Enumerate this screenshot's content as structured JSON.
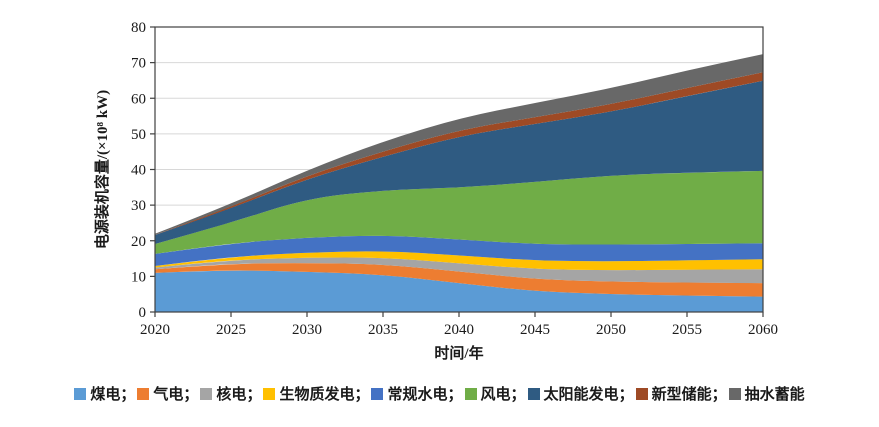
{
  "chart_data": {
    "type": "area",
    "stacked": true,
    "title": "",
    "xlabel": "时间/年",
    "ylabel": "电源装机容量/(×10⁸ kW)",
    "x": [
      2020,
      2025,
      2030,
      2035,
      2040,
      2045,
      2050,
      2055,
      2060
    ],
    "x_tick_labels": [
      "2020",
      "2025",
      "2030",
      "2035",
      "2040",
      "2045",
      "2050",
      "2055",
      "2060"
    ],
    "y_tick_labels": [
      "0",
      "10",
      "20",
      "30",
      "40",
      "50",
      "60",
      "70",
      "80"
    ],
    "xlim": [
      2020,
      2060
    ],
    "ylim": [
      0,
      80
    ],
    "ytick_step": 10,
    "grid": "horizontal",
    "gridline_color": "#d8d8d8",
    "axis_color": "#404040",
    "legend_position": "bottom",
    "legend_separator": "；",
    "series": [
      {
        "name": "煤电",
        "color": "#5B9BD5",
        "values": [
          11.0,
          11.8,
          11.3,
          10.5,
          8.1,
          5.8,
          5.0,
          4.6,
          4.3
        ]
      },
      {
        "name": "气电",
        "color": "#ED7D31",
        "values": [
          1.0,
          1.8,
          2.5,
          2.9,
          3.3,
          3.4,
          3.5,
          3.7,
          3.8
        ]
      },
      {
        "name": "核电",
        "color": "#A5A5A5",
        "values": [
          0.5,
          1.0,
          1.5,
          1.9,
          2.3,
          2.8,
          3.2,
          3.6,
          3.9
        ]
      },
      {
        "name": "生物质发电",
        "color": "#FFC000",
        "values": [
          0.4,
          0.9,
          1.4,
          1.9,
          2.2,
          2.4,
          2.5,
          2.6,
          2.8
        ]
      },
      {
        "name": "常规水电",
        "color": "#4472C4",
        "values": [
          3.4,
          3.8,
          4.2,
          4.4,
          4.5,
          4.6,
          4.7,
          4.6,
          4.5
        ]
      },
      {
        "name": "风电",
        "color": "#70AD47",
        "values": [
          2.8,
          5.8,
          11.0,
          12.6,
          14.5,
          17.5,
          19.5,
          20.0,
          20.3
        ]
      },
      {
        "name": "太阳能发电",
        "color": "#2F5B82",
        "values": [
          2.5,
          4.0,
          5.5,
          9.4,
          14.5,
          16.3,
          17.8,
          21.5,
          25.3
        ]
      },
      {
        "name": "新型储能",
        "color": "#9E4A25",
        "values": [
          0.05,
          0.4,
          0.9,
          1.5,
          1.7,
          1.9,
          2.1,
          2.3,
          2.4
        ]
      },
      {
        "name": "抽水蓄能",
        "color": "#686868",
        "values": [
          0.3,
          0.8,
          1.5,
          2.8,
          3.3,
          4.0,
          4.5,
          4.9,
          5.1
        ]
      }
    ]
  }
}
